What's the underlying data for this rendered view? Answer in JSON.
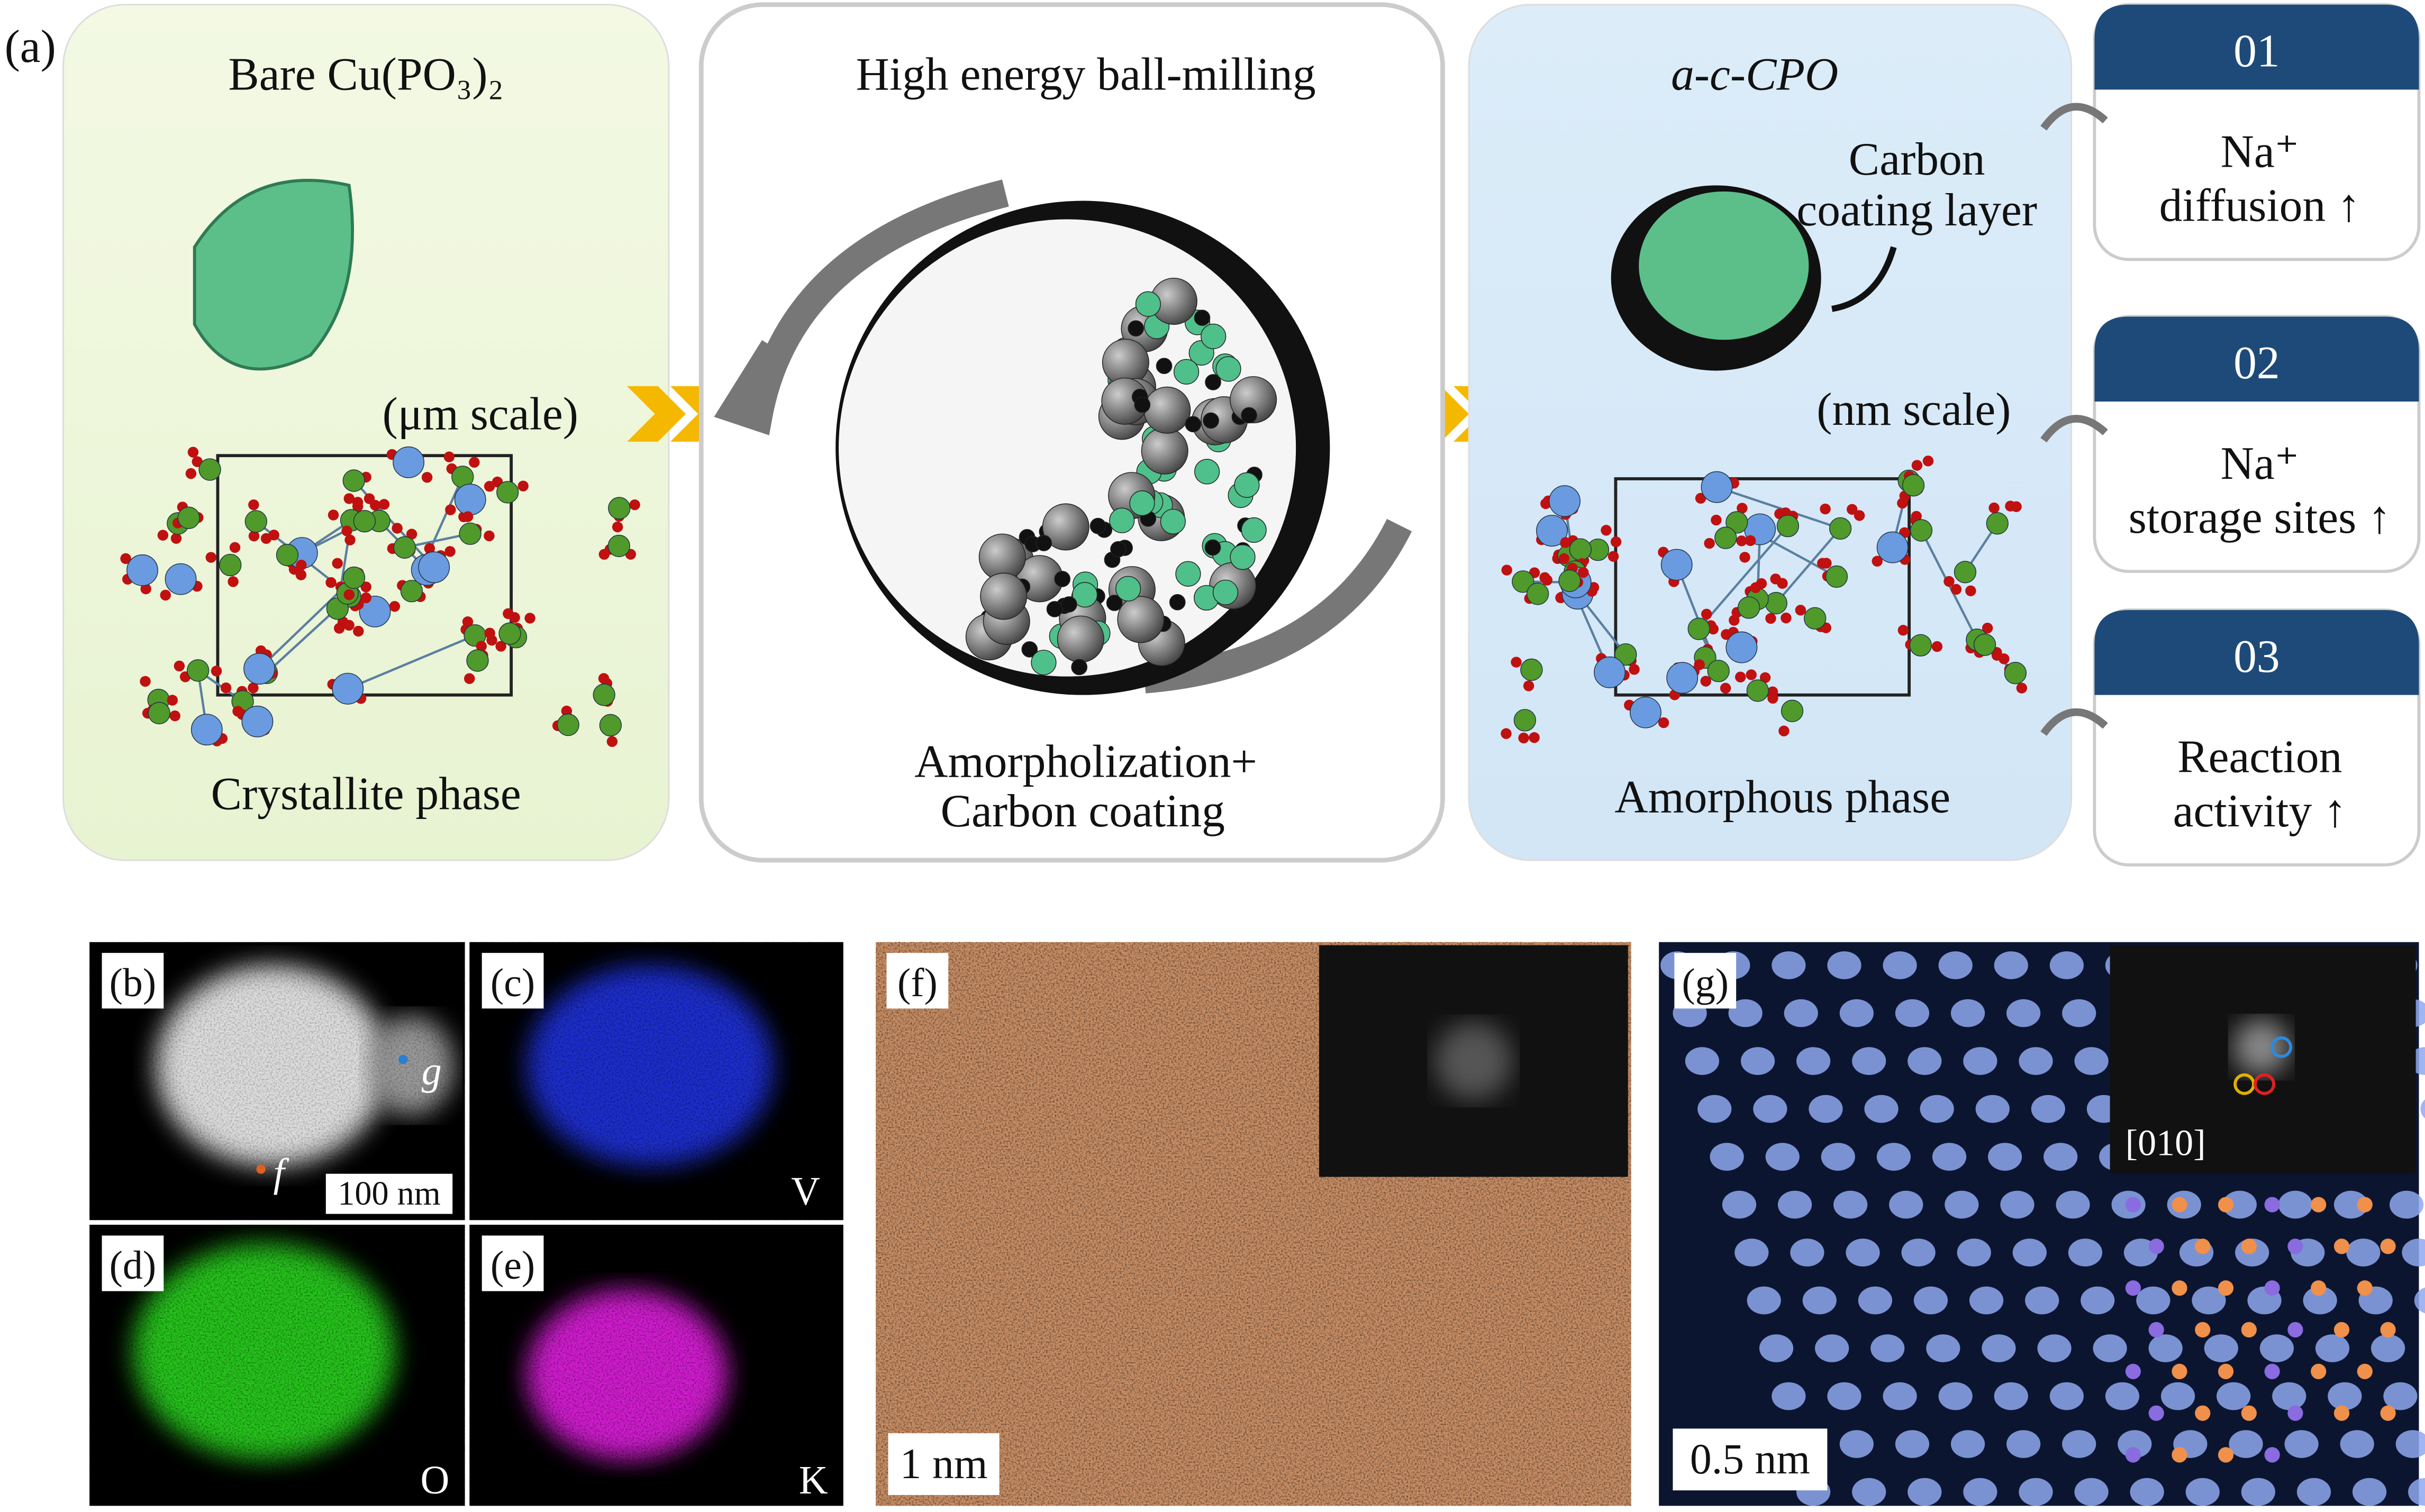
{
  "figure_a": {
    "label": "(a)",
    "stages": [
      {
        "title": "Bare Cu(PO₃)₂",
        "scale": "(μm scale)",
        "phase": "Crystallite phase"
      },
      {
        "title": "High energy ball-milling",
        "process": [
          "Amorpholization+",
          "Carbon coating"
        ]
      },
      {
        "title": "a-c-CPO",
        "annotation": [
          "Carbon",
          "coating layer"
        ],
        "scale": "(nm scale)",
        "phase": "Amorphous phase"
      }
    ],
    "benefits": [
      {
        "number": "01",
        "text": [
          "Na⁺",
          "diffusion ↑"
        ]
      },
      {
        "number": "02",
        "text": [
          "Na⁺",
          "storage sites ↑"
        ]
      },
      {
        "number": "03",
        "text": [
          "Reaction",
          "activity ↑"
        ]
      }
    ]
  },
  "micrographs": [
    {
      "label": "(b)",
      "markers": [
        "g",
        "f"
      ],
      "scale_bar": "100 nm"
    },
    {
      "label": "(c)",
      "element": "V"
    },
    {
      "label": "(d)",
      "element": "O"
    },
    {
      "label": "(e)",
      "element": "K"
    },
    {
      "label": "(f)",
      "scale_bar": "1 nm"
    },
    {
      "label": "(g)",
      "zone_axis": "[010]",
      "scale_bar": "0.5 nm"
    }
  ]
}
